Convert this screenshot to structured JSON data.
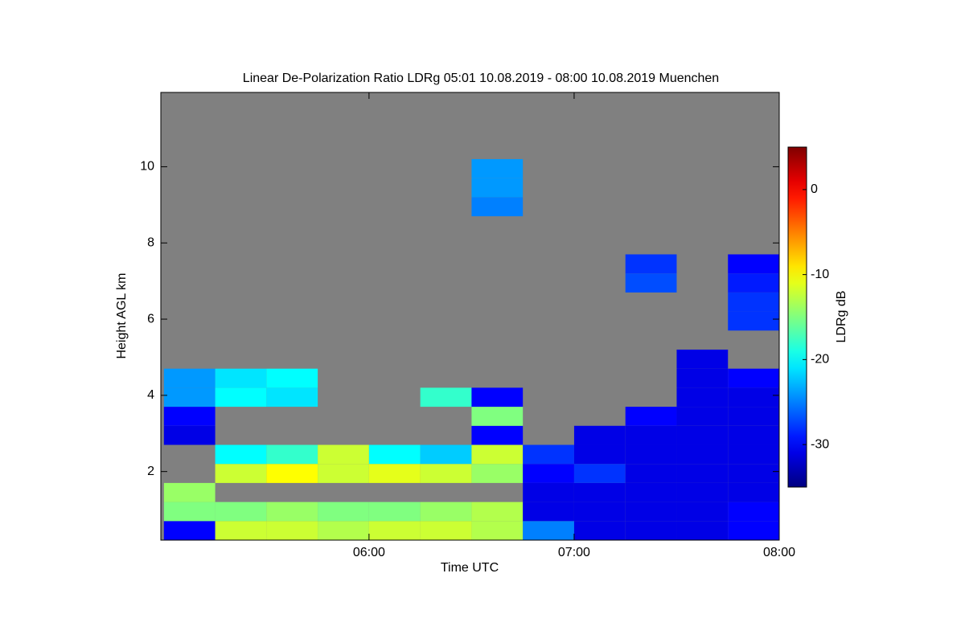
{
  "chart_data": {
    "type": "heatmap",
    "title": "Linear De-Polarization Ratio LDRg   05:01 10.08.2019 - 08:00 10.08.2019 Muenchen",
    "xlabel": "Time UTC",
    "ylabel": "Height AGL km",
    "colorbar_label": "LDRg dB",
    "xlim": [
      4.985,
      8
    ],
    "ylim": [
      0.2,
      11.95
    ],
    "xticks": [
      {
        "value": 6,
        "label": "06:00"
      },
      {
        "value": 7,
        "label": "07:00"
      },
      {
        "value": 8,
        "label": "08:00"
      }
    ],
    "yticks": [
      2,
      4,
      6,
      8,
      10
    ],
    "clim": [
      -35,
      5
    ],
    "cticks": [
      0,
      -10,
      -20,
      -30
    ],
    "colormap": "jet",
    "background": "#808080",
    "x_bins": [
      5,
      5.25,
      5.5,
      5.75,
      6,
      6.25,
      6.5,
      6.75,
      7,
      7.25,
      7.5,
      7.75,
      8
    ],
    "y_bins": [
      0.2,
      0.7,
      1.2,
      1.7,
      2.2,
      2.7,
      3.2,
      3.7,
      4.2,
      4.7,
      5.2,
      5.7,
      6.2,
      6.7,
      7.2,
      7.7,
      8.2,
      8.7,
      9.2,
      9.7,
      10.2,
      10.7,
      11.2,
      11.7
    ],
    "z": [
      [
        -30,
        -12,
        -12,
        -13,
        -12,
        -12,
        -13,
        -25,
        -31,
        -31,
        -31,
        -30
      ],
      [
        -15,
        -15,
        -14,
        -15,
        -15,
        -14,
        -13,
        -31,
        -31,
        -31,
        -31,
        -30
      ],
      [
        -14,
        null,
        null,
        null,
        null,
        null,
        null,
        -31,
        -31,
        -31,
        -31,
        -31
      ],
      [
        null,
        -12,
        -10,
        -12,
        -11,
        -12,
        -14,
        -30,
        -28,
        -31,
        -31,
        -31
      ],
      [
        null,
        -20,
        -18,
        -12,
        -20,
        -22,
        -12,
        -28,
        -31,
        -31,
        -31,
        -31
      ],
      [
        -31,
        null,
        null,
        null,
        null,
        null,
        -30,
        null,
        -31,
        -31,
        -31,
        -31
      ],
      [
        -30,
        null,
        null,
        null,
        null,
        null,
        -15,
        null,
        null,
        -30,
        -31,
        -31
      ],
      [
        -24,
        -20,
        -21,
        null,
        null,
        -18,
        -30,
        null,
        null,
        null,
        -31,
        -31
      ],
      [
        -24,
        -21,
        -20,
        null,
        null,
        null,
        null,
        null,
        null,
        null,
        -31,
        -30
      ],
      [
        null,
        null,
        null,
        null,
        null,
        null,
        null,
        null,
        null,
        null,
        -31,
        null
      ],
      [
        null,
        null,
        null,
        null,
        null,
        null,
        null,
        null,
        null,
        null,
        null,
        null
      ],
      [
        null,
        null,
        null,
        null,
        null,
        null,
        null,
        null,
        null,
        null,
        null,
        -28
      ],
      [
        null,
        null,
        null,
        null,
        null,
        null,
        null,
        null,
        null,
        null,
        null,
        -28
      ],
      [
        null,
        null,
        null,
        null,
        null,
        null,
        null,
        null,
        null,
        -27,
        null,
        -29
      ],
      [
        null,
        null,
        null,
        null,
        null,
        null,
        null,
        null,
        null,
        -28,
        null,
        -30
      ],
      [
        null,
        null,
        null,
        null,
        null,
        null,
        null,
        null,
        null,
        null,
        null,
        null
      ],
      [
        null,
        null,
        null,
        null,
        null,
        null,
        null,
        null,
        null,
        null,
        null,
        null
      ],
      [
        null,
        null,
        null,
        null,
        null,
        null,
        -25,
        null,
        null,
        null,
        null,
        null
      ],
      [
        null,
        null,
        null,
        null,
        null,
        null,
        -24,
        null,
        null,
        null,
        null,
        null
      ],
      [
        null,
        null,
        null,
        null,
        null,
        null,
        -24,
        null,
        null,
        null,
        null,
        null
      ],
      [
        null,
        null,
        null,
        null,
        null,
        null,
        null,
        null,
        null,
        null,
        null,
        null
      ],
      [
        null,
        null,
        null,
        null,
        null,
        null,
        null,
        null,
        null,
        null,
        null,
        null
      ],
      [
        null,
        null,
        null,
        null,
        null,
        null,
        null,
        null,
        null,
        null,
        null,
        null
      ]
    ]
  }
}
